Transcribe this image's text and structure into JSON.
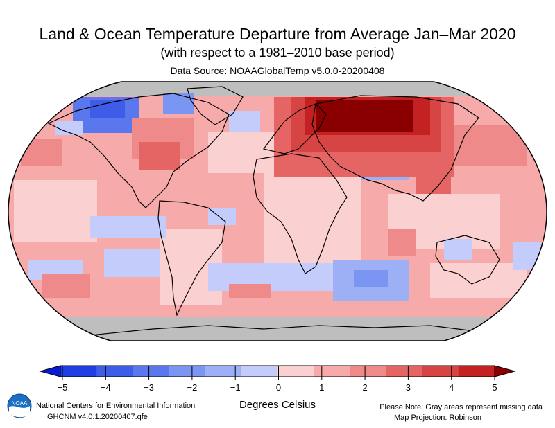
{
  "map": {
    "title": "Land & Ocean Temperature Departure from Average Jan–Mar 2020",
    "subtitle": "(with respect to a 1981–2010 base period)",
    "data_source": "Data Source: NOAAGlobalTemp v5.0.0-20200408",
    "projection": "Robinson",
    "missing_color": "#bebebe",
    "palette": [
      "#0a1ad2",
      "#1f3fe0",
      "#3d5ce8",
      "#5b77ee",
      "#7b95f2",
      "#9db0f6",
      "#c4ccfb",
      "#fbd0d0",
      "#f6aaaa",
      "#ef8a8a",
      "#e56565",
      "#d74444",
      "#c42222",
      "#8a0000"
    ]
  },
  "colorbar": {
    "label": "Degrees Celsius",
    "ticks": [
      "−5",
      "−4",
      "−3",
      "−2",
      "−1",
      "0",
      "1",
      "2",
      "3",
      "4",
      "5"
    ]
  },
  "footer": {
    "center_name": "National Centers for Environmental Information",
    "version": "GHCNM v4.0.1.20200407.qfe",
    "missing_note": "Please Note: Gray areas represent missing data",
    "projection_note": "Map Projection: Robinson"
  },
  "logo": {
    "text": "NOAA"
  }
}
